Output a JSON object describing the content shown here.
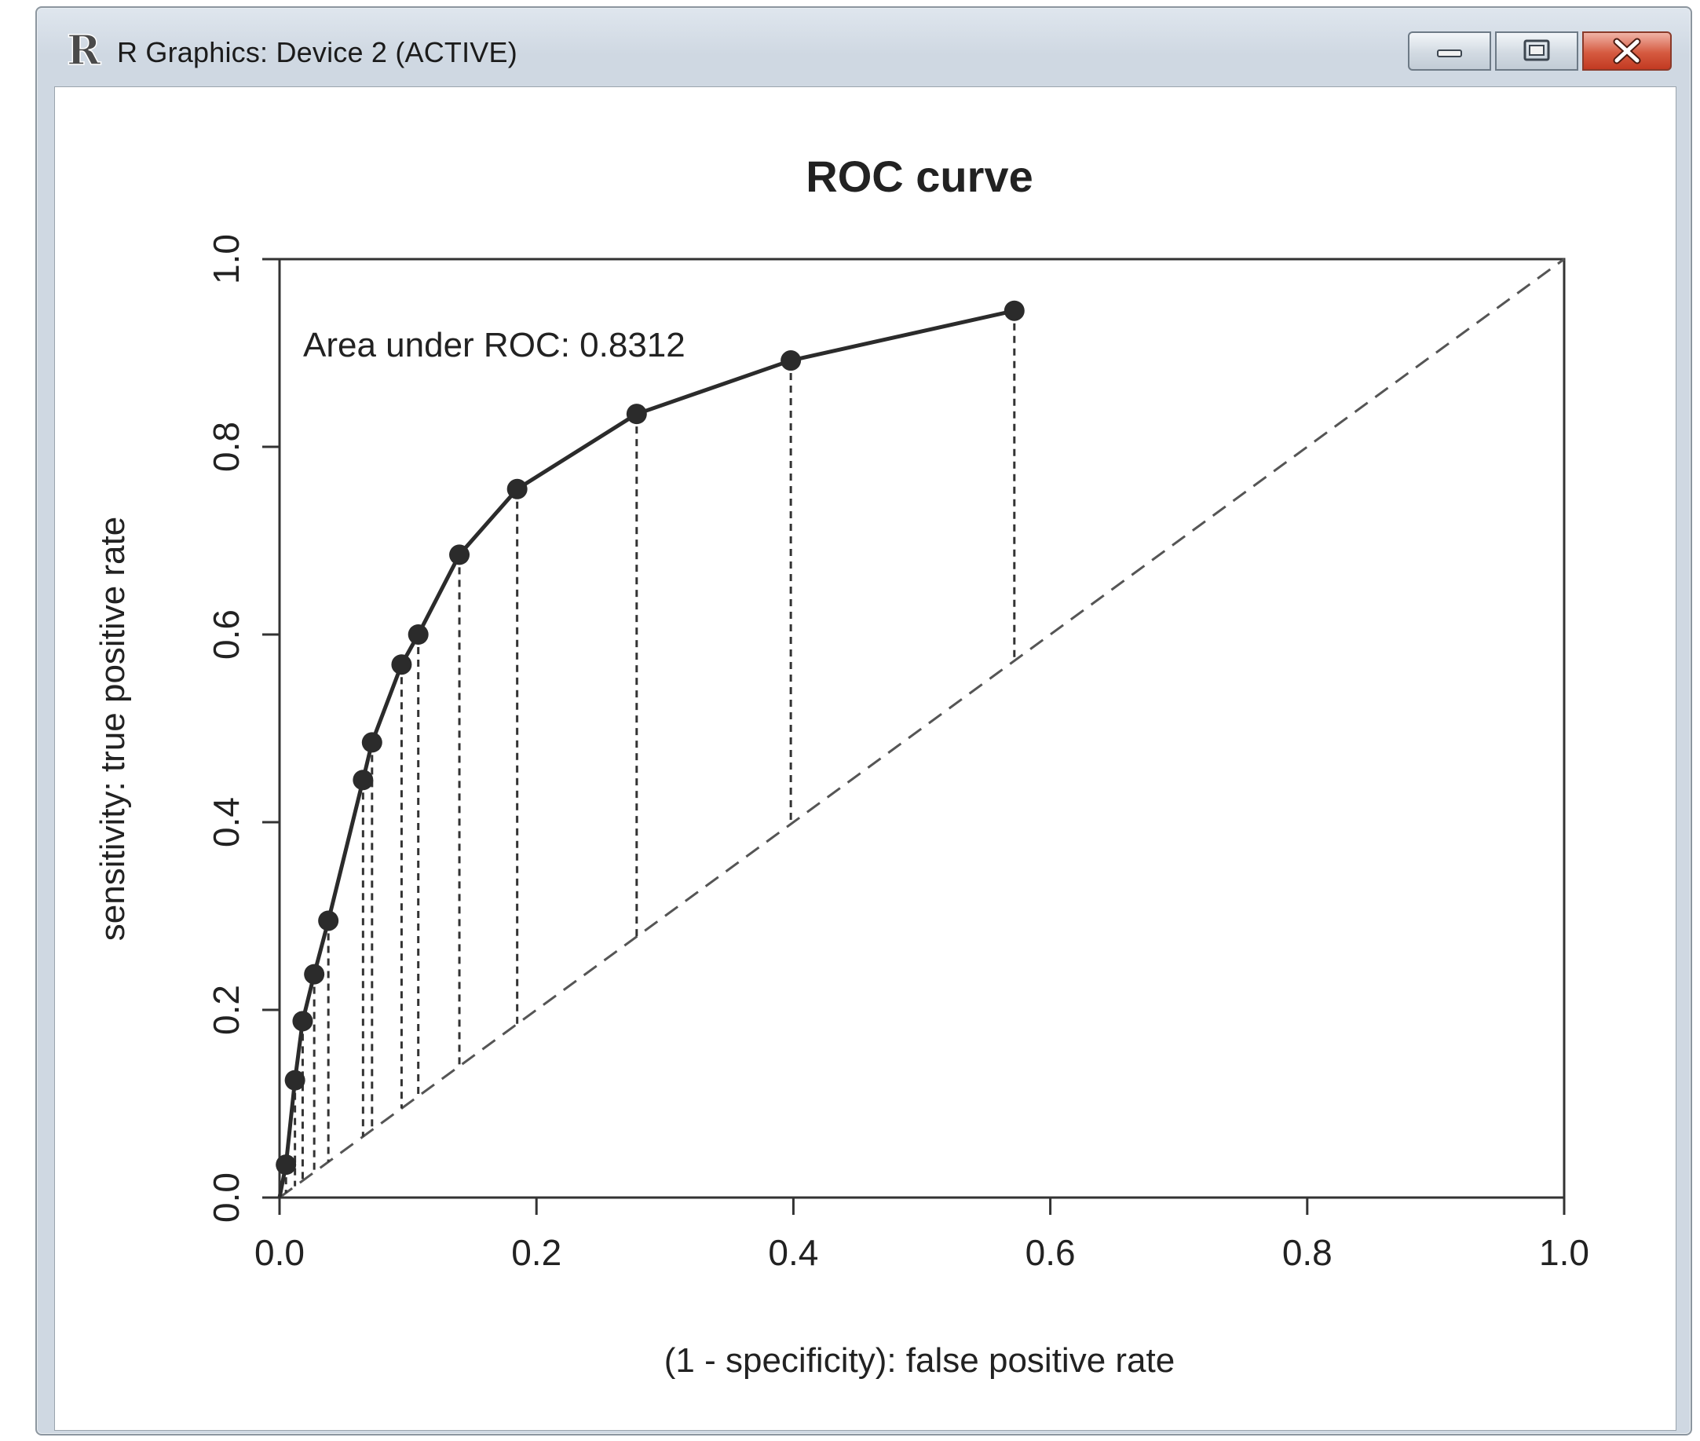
{
  "window": {
    "title": "R Graphics: Device 2 (ACTIVE)",
    "icon": "r-logo-icon",
    "controls": [
      "minimize-icon",
      "restore-icon",
      "close-icon"
    ]
  },
  "chart_data": {
    "type": "line",
    "title": "ROC curve",
    "xlabel": "(1 - specificity): false positive rate",
    "ylabel": "sensitivity: true positive rate",
    "xlim": [
      0,
      1
    ],
    "ylim": [
      0,
      1
    ],
    "x_ticks": [
      "0.0",
      "0.2",
      "0.4",
      "0.6",
      "0.8",
      "1.0"
    ],
    "y_ticks": [
      "0.0",
      "0.2",
      "0.4",
      "0.6",
      "0.8",
      "1.0"
    ],
    "annotation": "Area under ROC: 0.8312",
    "grid": false,
    "diagonal_reference": true,
    "series": [
      {
        "x": [
          0.0,
          0.005,
          0.012,
          0.018,
          0.027,
          0.038,
          0.065,
          0.072,
          0.095,
          0.108,
          0.14,
          0.185,
          0.278,
          0.398,
          0.572
        ],
        "y": [
          0.0,
          0.035,
          0.125,
          0.188,
          0.238,
          0.295,
          0.445,
          0.485,
          0.568,
          0.6,
          0.685,
          0.755,
          0.835,
          0.892,
          0.945
        ]
      }
    ],
    "colors": {
      "curve": "#2b2b2b",
      "axis": "#333333",
      "reference": "#555555"
    }
  }
}
